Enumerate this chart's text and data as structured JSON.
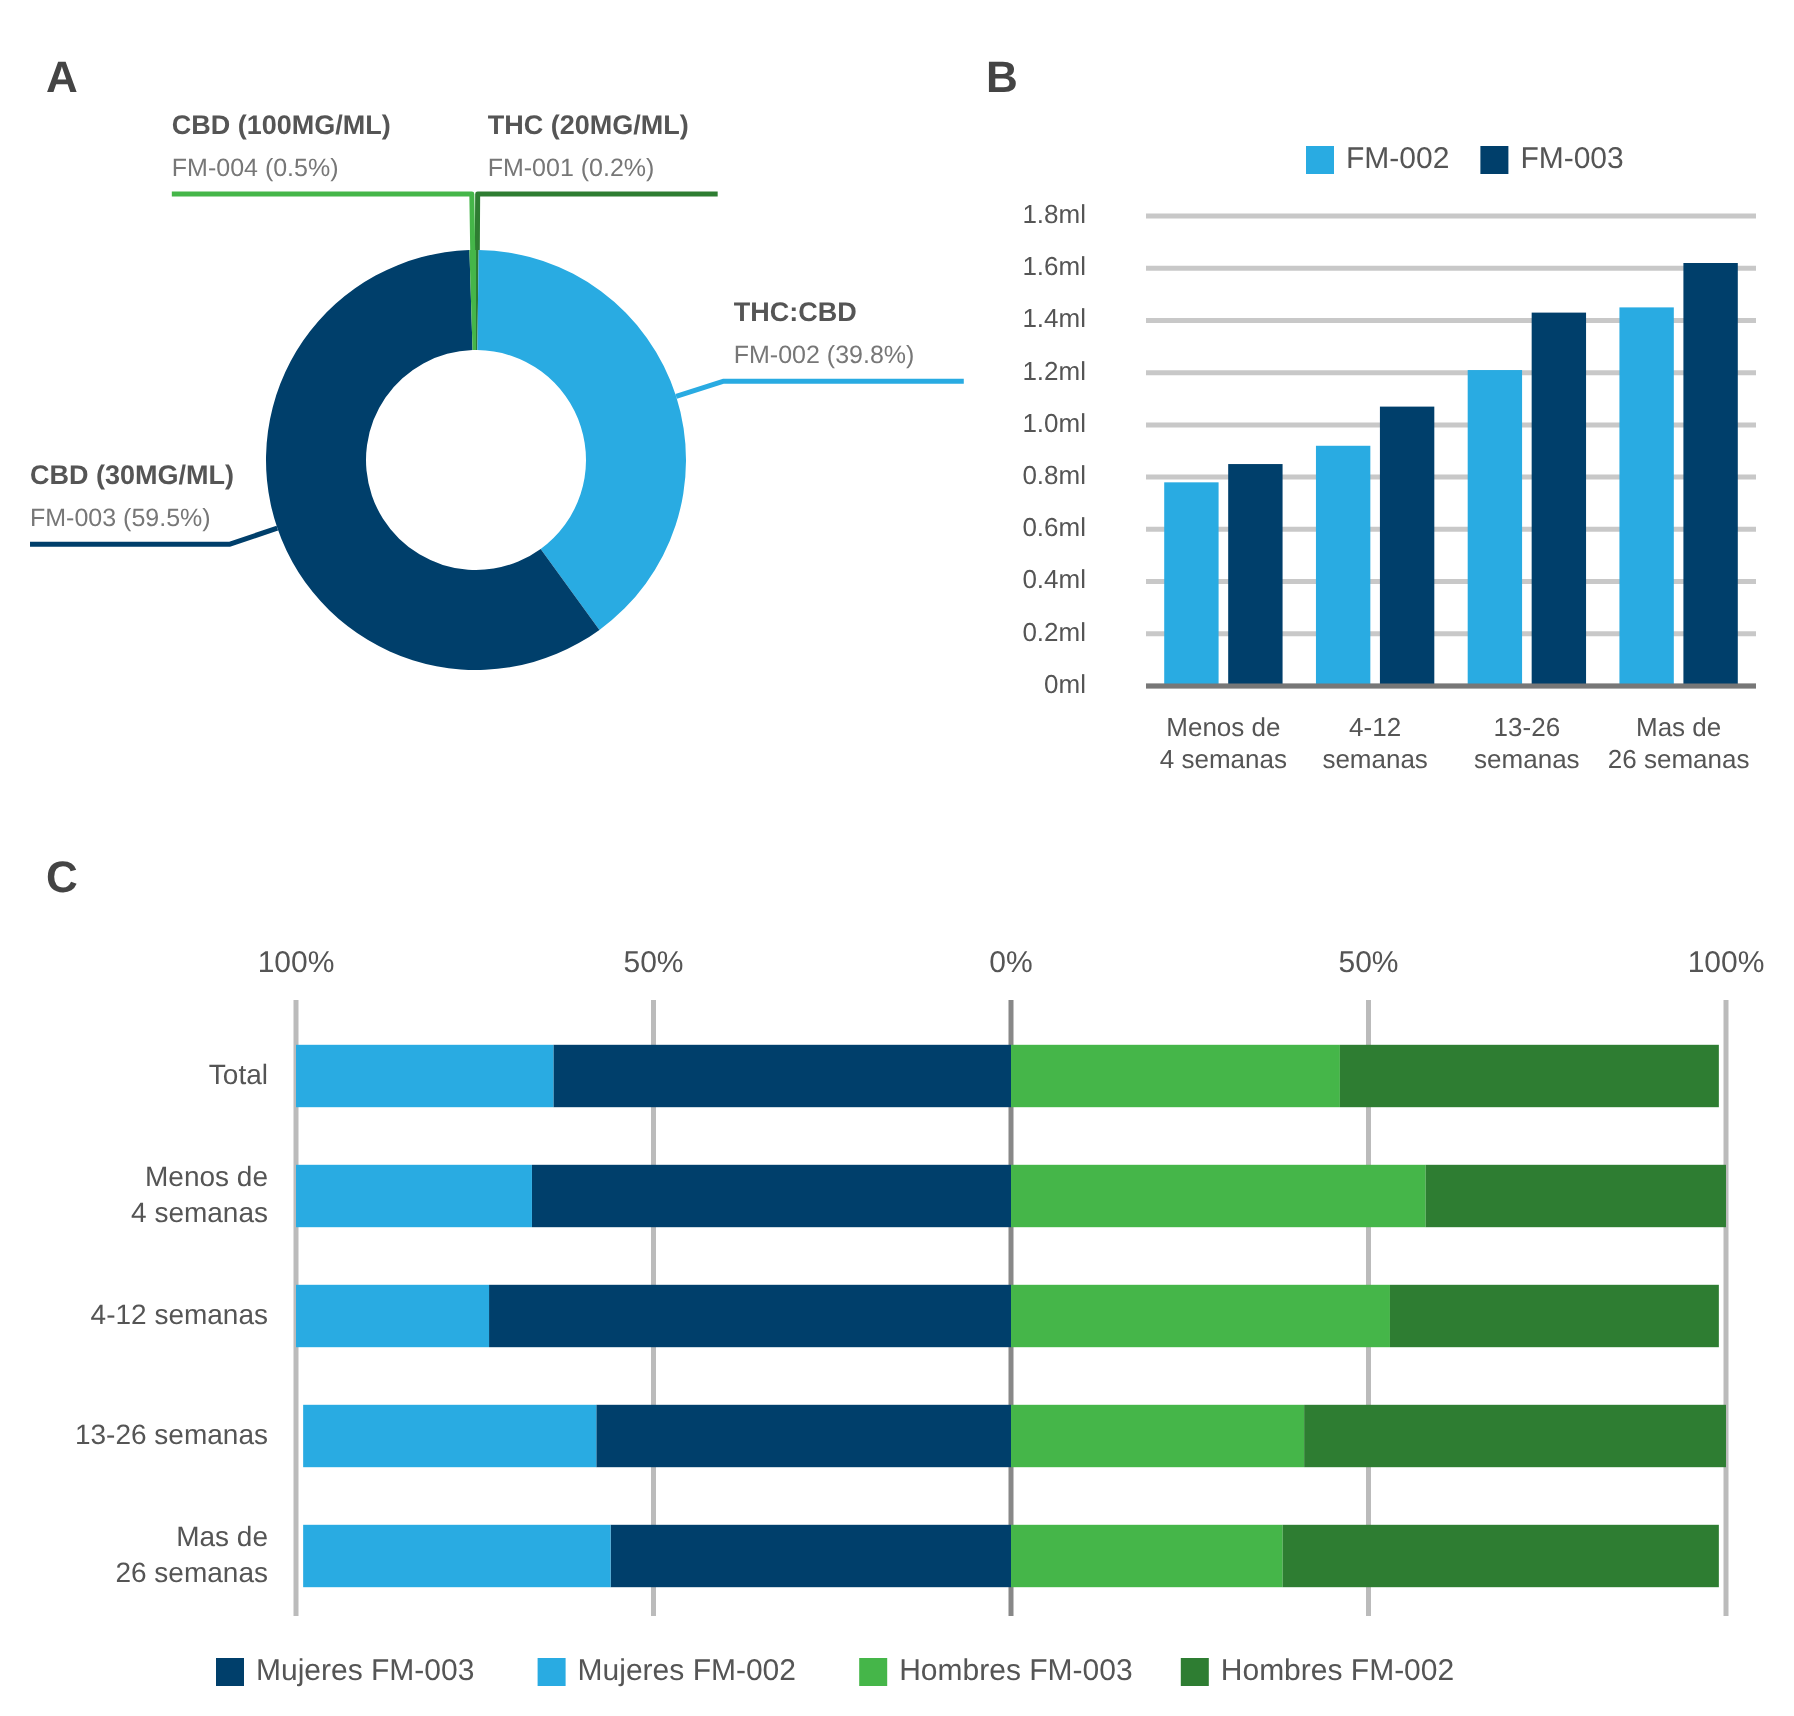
{
  "chart_data": [
    {
      "type": "donut",
      "title": "A",
      "categories": [
        "THC (20MG/ML)",
        "THC:CBD",
        "CBD (30MG/ML)",
        "CBD (100MG/ML)"
      ],
      "values": [
        0.2,
        39.8,
        59.5,
        0.5
      ],
      "value_labels": [
        "FM-001 (0.2%)",
        "FM-002 (39.8%)",
        "FM-003 (59.5%)",
        "FM-004 (0.5%)"
      ],
      "colors": [
        "#2e7d32",
        "#29abe2",
        "#003f6b",
        "#45b649"
      ],
      "legend": false
    },
    {
      "type": "bar",
      "title": "B",
      "categories": [
        "Menos de\n4 semanas",
        "4-12\nsemanas",
        "13-26\nsemanas",
        "Mas de\n26 semanas"
      ],
      "series": [
        {
          "name": "FM-002",
          "color": "#29abe2",
          "values": [
            0.78,
            0.92,
            1.21,
            1.45
          ]
        },
        {
          "name": "FM-003",
          "color": "#003f6b",
          "values": [
            0.85,
            1.07,
            1.43,
            1.62
          ]
        }
      ],
      "ylim": [
        0,
        1.8
      ],
      "yticks": [
        {
          "value": 0,
          "label": "0ml"
        },
        {
          "value": 0.2,
          "label": "0.2ml"
        },
        {
          "value": 0.4,
          "label": "0.4ml"
        },
        {
          "value": 0.6,
          "label": "0.6ml"
        },
        {
          "value": 0.8,
          "label": "0.8ml"
        },
        {
          "value": 1,
          "label": "1.0ml"
        },
        {
          "value": 1.2,
          "label": "1.2ml"
        },
        {
          "value": 1.4,
          "label": "1.4ml"
        },
        {
          "value": 1.6,
          "label": "1.6ml"
        },
        {
          "value": 1.8,
          "label": "1.8ml"
        }
      ],
      "grid": "y",
      "legend": "top"
    },
    {
      "type": "bar",
      "title": "C",
      "orientation": "horizontal",
      "stacked": true,
      "categories": [
        "Total",
        "Menos de\n4 semanas",
        "4-12 semanas",
        "13-26 semanas",
        "Mas de\n26 semanas"
      ],
      "series": [
        {
          "name": "Mujeres FM-003",
          "color": "#003f6b",
          "values": [
            -64,
            -67,
            -73,
            -58,
            -56
          ]
        },
        {
          "name": "Mujeres FM-002",
          "color": "#29abe2",
          "values": [
            -36,
            -33,
            -27,
            -41,
            -43
          ]
        },
        {
          "name": "Hombres FM-003",
          "color": "#45b649",
          "values": [
            46,
            58,
            53,
            41,
            38
          ]
        },
        {
          "name": "Hombres FM-002",
          "color": "#2e7d32",
          "values": [
            53,
            42,
            46,
            59,
            61
          ]
        }
      ],
      "xlim": [
        -100,
        100
      ],
      "xticks": [
        {
          "value": -100,
          "label": "100%"
        },
        {
          "value": -50,
          "label": "50%"
        },
        {
          "value": 0,
          "label": "0%"
        },
        {
          "value": 50,
          "label": "50%"
        },
        {
          "value": 100,
          "label": "100%"
        }
      ],
      "grid": "x",
      "legend": "bottom"
    }
  ]
}
